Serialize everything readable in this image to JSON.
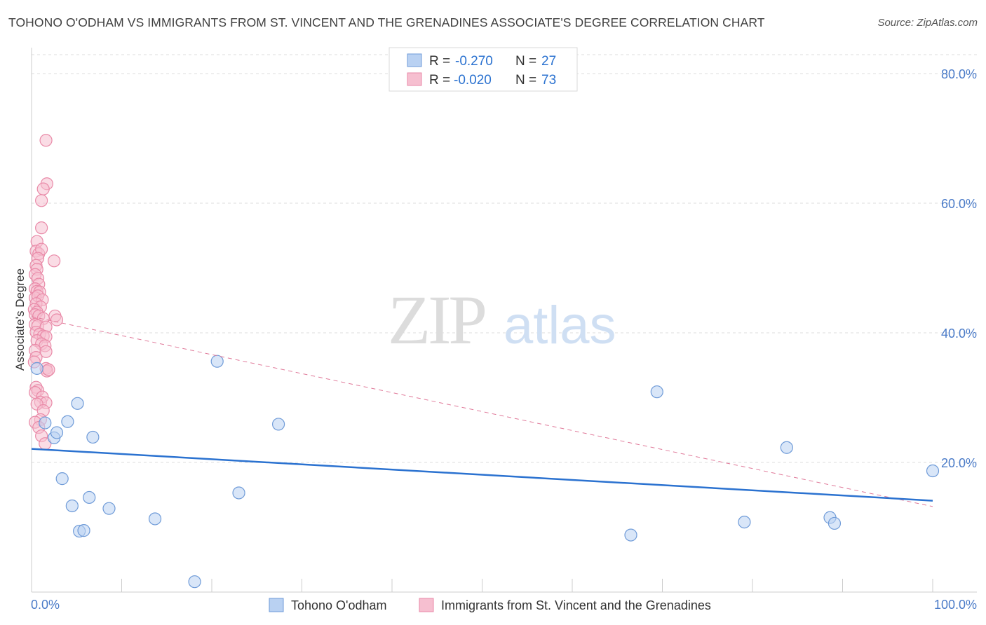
{
  "title": "TOHONO O'ODHAM VS IMMIGRANTS FROM ST. VINCENT AND THE GRENADINES ASSOCIATE'S DEGREE CORRELATION CHART",
  "source": "Source: ZipAtlas.com",
  "watermark": {
    "zip": "ZIP",
    "atlas": "atlas"
  },
  "colors": {
    "blue_fill": "#b9d1f2",
    "blue_stroke": "#6f9bd8",
    "blue_line": "#2b72d0",
    "pink_fill": "#f6bfd0",
    "pink_stroke": "#e98aa8",
    "pink_line": "#e07a9a",
    "grid": "#dddddd",
    "axis_text": "#4a7bc8"
  },
  "legend": {
    "rows": [
      {
        "r_label": "R =",
        "r_value": "-0.270",
        "n_label": "N =",
        "n_value": "27"
      },
      {
        "r_label": "R =",
        "r_value": "-0.020",
        "n_label": "N =",
        "n_value": "73"
      }
    ]
  },
  "chart_data": {
    "type": "scatter",
    "ylabel": "Associate's Degree",
    "xlim": [
      0,
      100
    ],
    "ylim": [
      0,
      84
    ],
    "x_ticks": [
      "0.0%",
      "100.0%"
    ],
    "y_ticks": [
      {
        "value": 20,
        "label": "20.0%"
      },
      {
        "value": 40,
        "label": "40.0%"
      },
      {
        "value": 60,
        "label": "60.0%"
      },
      {
        "value": 80,
        "label": "80.0%"
      }
    ],
    "grid": "horizontal dashed",
    "legend_position": "top-center",
    "series": [
      {
        "name": "Tohono O'odham",
        "color": "blue",
        "trend": {
          "x": [
            0,
            100
          ],
          "y": [
            22.1,
            14.1
          ],
          "style": "solid"
        },
        "points": [
          [
            0.6,
            34.5
          ],
          [
            1.5,
            26.1
          ],
          [
            4.0,
            26.3
          ],
          [
            2.5,
            23.8
          ],
          [
            2.8,
            24.6
          ],
          [
            5.1,
            29.1
          ],
          [
            6.8,
            23.9
          ],
          [
            3.4,
            17.5
          ],
          [
            4.5,
            13.3
          ],
          [
            6.4,
            14.6
          ],
          [
            8.6,
            12.9
          ],
          [
            13.7,
            11.3
          ],
          [
            5.3,
            9.4
          ],
          [
            5.8,
            9.5
          ],
          [
            18.1,
            1.6
          ],
          [
            20.6,
            35.6
          ],
          [
            23.0,
            15.3
          ],
          [
            27.4,
            25.9
          ],
          [
            69.4,
            30.9
          ],
          [
            66.5,
            8.8
          ],
          [
            83.8,
            22.3
          ],
          [
            79.1,
            10.8
          ],
          [
            88.6,
            11.5
          ],
          [
            89.1,
            10.6
          ],
          [
            100.0,
            18.7
          ]
        ]
      },
      {
        "name": "Immigrants from St. Vincent and the Grenadines",
        "color": "pink",
        "trend": {
          "x": [
            0,
            100
          ],
          "y": [
            42.5,
            13.2
          ],
          "style": "dashed"
        },
        "points": [
          [
            1.6,
            69.7
          ],
          [
            1.7,
            63.0
          ],
          [
            1.3,
            62.2
          ],
          [
            1.1,
            60.4
          ],
          [
            1.1,
            56.2
          ],
          [
            0.6,
            54.1
          ],
          [
            0.5,
            52.6
          ],
          [
            0.8,
            52.2
          ],
          [
            1.1,
            52.9
          ],
          [
            0.7,
            51.5
          ],
          [
            2.5,
            51.1
          ],
          [
            0.5,
            50.4
          ],
          [
            0.6,
            49.8
          ],
          [
            0.4,
            49.0
          ],
          [
            0.7,
            48.4
          ],
          [
            0.8,
            47.5
          ],
          [
            0.4,
            46.8
          ],
          [
            0.6,
            46.4
          ],
          [
            0.9,
            46.3
          ],
          [
            0.4,
            45.4
          ],
          [
            0.7,
            45.7
          ],
          [
            1.2,
            45.1
          ],
          [
            0.5,
            44.5
          ],
          [
            1.0,
            44.0
          ],
          [
            0.3,
            43.6
          ],
          [
            0.6,
            43.2
          ],
          [
            0.4,
            42.8
          ],
          [
            0.8,
            42.6
          ],
          [
            2.6,
            42.6
          ],
          [
            1.3,
            42.2
          ],
          [
            2.8,
            42.0
          ],
          [
            0.4,
            41.3
          ],
          [
            0.7,
            41.1
          ],
          [
            1.6,
            40.9
          ],
          [
            0.5,
            40.1
          ],
          [
            0.9,
            39.8
          ],
          [
            1.3,
            39.5
          ],
          [
            1.6,
            39.4
          ],
          [
            0.6,
            38.8
          ],
          [
            1.1,
            38.3
          ],
          [
            1.5,
            38.0
          ],
          [
            0.4,
            37.3
          ],
          [
            1.6,
            37.1
          ],
          [
            0.5,
            36.2
          ],
          [
            0.3,
            35.5
          ],
          [
            1.6,
            34.5
          ],
          [
            1.7,
            34.1
          ],
          [
            1.9,
            34.3
          ],
          [
            0.5,
            31.6
          ],
          [
            0.7,
            31.1
          ],
          [
            0.4,
            30.8
          ],
          [
            1.2,
            30.1
          ],
          [
            1.0,
            29.3
          ],
          [
            1.6,
            29.2
          ],
          [
            0.6,
            29.0
          ],
          [
            1.3,
            28.0
          ],
          [
            1.0,
            26.6
          ],
          [
            0.4,
            26.2
          ],
          [
            0.8,
            25.4
          ],
          [
            1.1,
            24.1
          ],
          [
            1.5,
            22.9
          ]
        ]
      }
    ]
  }
}
